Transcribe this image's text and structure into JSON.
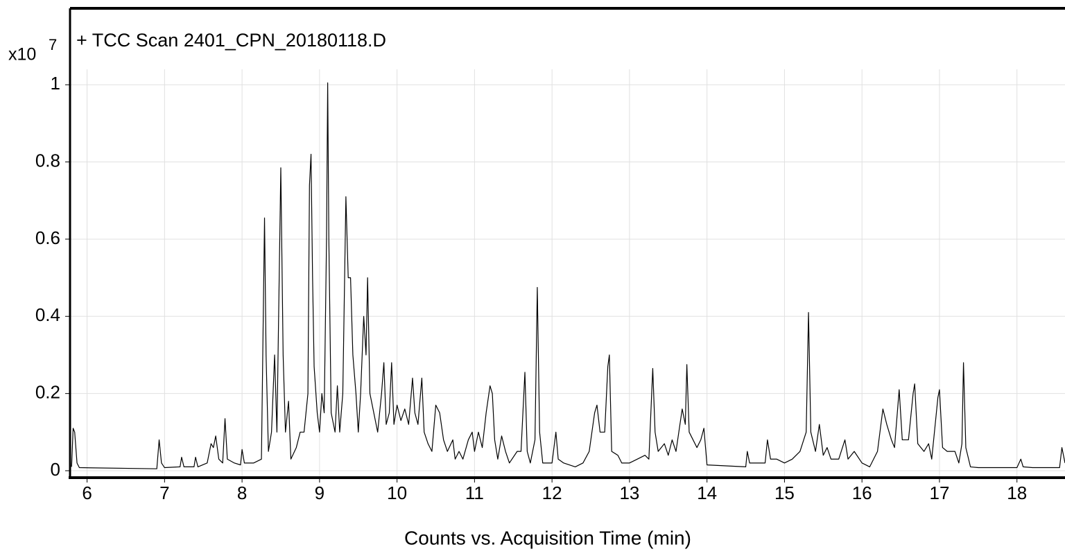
{
  "chart_data": {
    "type": "line",
    "title": "+ TCC Scan 2401_CPN_20180118.D",
    "x_label": "Counts vs. Acquisition Time (min)",
    "y_multiplier": "x10",
    "y_exponent": "7",
    "color": "#000000",
    "grid": true,
    "xlim": [
      5.78,
      18.62
    ],
    "ylim": [
      -0.018,
      1.04
    ],
    "xticks": [
      6,
      7,
      8,
      9,
      10,
      11,
      12,
      13,
      14,
      15,
      16,
      17,
      18
    ],
    "yticks": [
      0,
      0.2,
      0.4,
      0.6,
      0.8,
      1
    ],
    "x": [
      5.8,
      5.82,
      5.84,
      5.87,
      5.9,
      6.9,
      6.93,
      6.96,
      7.0,
      7.2,
      7.22,
      7.25,
      7.38,
      7.4,
      7.43,
      7.55,
      7.6,
      7.63,
      7.66,
      7.7,
      7.75,
      7.78,
      7.81,
      7.9,
      7.98,
      8.0,
      8.03,
      8.15,
      8.25,
      8.29,
      8.31,
      8.34,
      8.38,
      8.42,
      8.45,
      8.5,
      8.53,
      8.56,
      8.6,
      8.63,
      8.7,
      8.75,
      8.8,
      8.85,
      8.87,
      8.89,
      8.91,
      8.93,
      8.97,
      9.0,
      9.03,
      9.06,
      9.09,
      9.105,
      9.12,
      9.15,
      9.2,
      9.23,
      9.26,
      9.3,
      9.34,
      9.37,
      9.4,
      9.43,
      9.47,
      9.5,
      9.53,
      9.57,
      9.6,
      9.62,
      9.65,
      9.7,
      9.75,
      9.8,
      9.83,
      9.86,
      9.9,
      9.93,
      9.96,
      10.0,
      10.05,
      10.1,
      10.15,
      10.2,
      10.23,
      10.27,
      10.32,
      10.35,
      10.4,
      10.45,
      10.5,
      10.55,
      10.6,
      10.65,
      10.72,
      10.75,
      10.8,
      10.85,
      10.92,
      10.97,
      11.0,
      11.05,
      11.1,
      11.15,
      11.2,
      11.23,
      11.26,
      11.3,
      11.35,
      11.4,
      11.45,
      11.55,
      11.6,
      11.65,
      11.68,
      11.72,
      11.78,
      11.81,
      11.84,
      11.88,
      12.0,
      12.05,
      12.08,
      12.15,
      12.3,
      12.4,
      12.48,
      12.55,
      12.58,
      12.62,
      12.68,
      12.72,
      12.74,
      12.77,
      12.85,
      12.9,
      13.0,
      13.1,
      13.2,
      13.25,
      13.3,
      13.33,
      13.37,
      13.45,
      13.5,
      13.55,
      13.6,
      13.68,
      13.72,
      13.74,
      13.77,
      13.82,
      13.87,
      13.92,
      13.96,
      14.0,
      14.5,
      14.52,
      14.55,
      14.75,
      14.78,
      14.82,
      14.9,
      15.0,
      15.1,
      15.2,
      15.28,
      15.31,
      15.34,
      15.4,
      15.45,
      15.5,
      15.55,
      15.6,
      15.7,
      15.78,
      15.82,
      15.9,
      16.0,
      16.1,
      16.2,
      16.27,
      16.32,
      16.38,
      16.42,
      16.48,
      16.52,
      16.6,
      16.66,
      16.68,
      16.72,
      16.8,
      16.86,
      16.9,
      16.98,
      17.0,
      17.04,
      17.1,
      17.2,
      17.25,
      17.29,
      17.31,
      17.34,
      17.4,
      17.5,
      18.0,
      18.05,
      18.08,
      18.2,
      18.55,
      18.58,
      18.62
    ],
    "values": [
      0.01,
      0.11,
      0.1,
      0.02,
      0.008,
      0.005,
      0.08,
      0.02,
      0.008,
      0.01,
      0.035,
      0.01,
      0.01,
      0.035,
      0.01,
      0.02,
      0.07,
      0.06,
      0.09,
      0.03,
      0.02,
      0.135,
      0.03,
      0.02,
      0.015,
      0.055,
      0.02,
      0.02,
      0.03,
      0.655,
      0.3,
      0.05,
      0.1,
      0.3,
      0.1,
      0.785,
      0.3,
      0.1,
      0.18,
      0.03,
      0.06,
      0.1,
      0.1,
      0.2,
      0.74,
      0.82,
      0.5,
      0.27,
      0.15,
      0.1,
      0.2,
      0.15,
      0.6,
      1.005,
      0.6,
      0.15,
      0.1,
      0.22,
      0.1,
      0.2,
      0.71,
      0.5,
      0.5,
      0.3,
      0.2,
      0.1,
      0.2,
      0.4,
      0.3,
      0.5,
      0.2,
      0.15,
      0.1,
      0.2,
      0.28,
      0.12,
      0.15,
      0.28,
      0.12,
      0.17,
      0.13,
      0.16,
      0.12,
      0.24,
      0.15,
      0.12,
      0.24,
      0.1,
      0.07,
      0.05,
      0.17,
      0.15,
      0.08,
      0.05,
      0.08,
      0.03,
      0.05,
      0.03,
      0.08,
      0.1,
      0.05,
      0.1,
      0.06,
      0.15,
      0.22,
      0.2,
      0.08,
      0.03,
      0.09,
      0.05,
      0.02,
      0.05,
      0.05,
      0.255,
      0.05,
      0.02,
      0.08,
      0.475,
      0.1,
      0.02,
      0.02,
      0.1,
      0.03,
      0.02,
      0.01,
      0.02,
      0.05,
      0.15,
      0.17,
      0.1,
      0.1,
      0.27,
      0.3,
      0.05,
      0.04,
      0.02,
      0.02,
      0.03,
      0.04,
      0.03,
      0.265,
      0.1,
      0.05,
      0.07,
      0.04,
      0.08,
      0.05,
      0.16,
      0.12,
      0.275,
      0.1,
      0.08,
      0.06,
      0.08,
      0.11,
      0.015,
      0.01,
      0.05,
      0.02,
      0.02,
      0.08,
      0.03,
      0.03,
      0.02,
      0.03,
      0.05,
      0.1,
      0.41,
      0.1,
      0.05,
      0.12,
      0.04,
      0.06,
      0.03,
      0.03,
      0.08,
      0.03,
      0.05,
      0.02,
      0.01,
      0.05,
      0.16,
      0.12,
      0.08,
      0.06,
      0.21,
      0.08,
      0.08,
      0.2,
      0.225,
      0.07,
      0.05,
      0.07,
      0.03,
      0.19,
      0.21,
      0.06,
      0.05,
      0.05,
      0.02,
      0.07,
      0.28,
      0.06,
      0.01,
      0.008,
      0.008,
      0.03,
      0.01,
      0.008,
      0.008,
      0.06,
      0.02
    ]
  }
}
